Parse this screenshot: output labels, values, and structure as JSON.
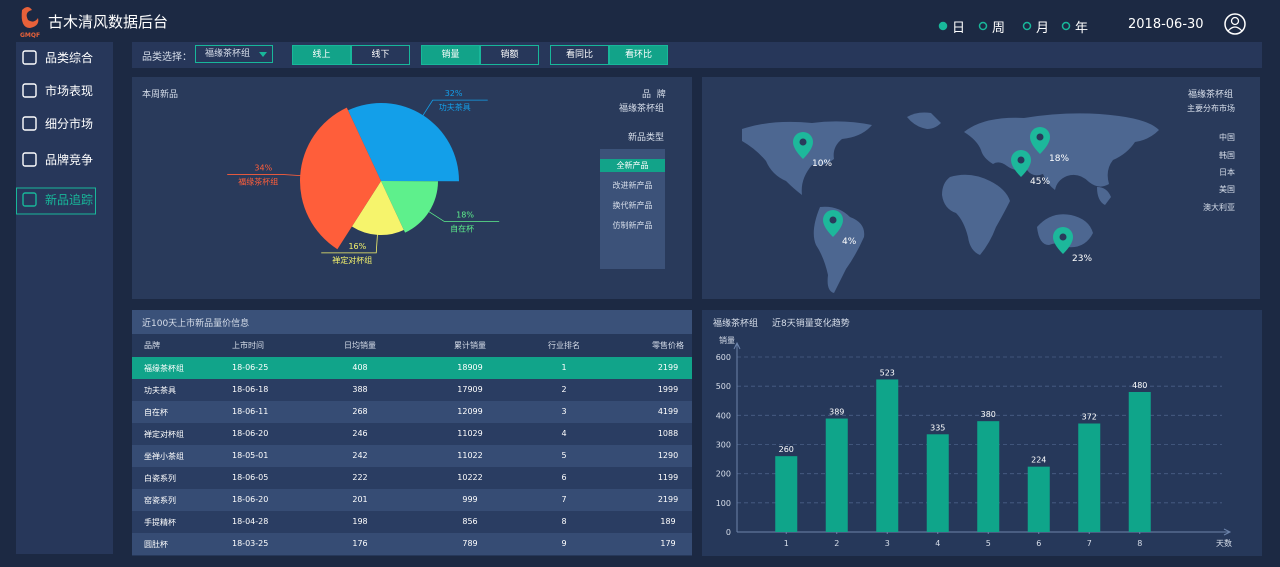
{
  "header": {
    "logo": "GMQF",
    "title": "古木清风数据后台",
    "periods": [
      "日",
      "周",
      "月",
      "年"
    ],
    "date": "2018-06-30"
  },
  "sidebar": {
    "items": [
      "品类综合",
      "市场表现",
      "细分市场",
      "品牌竞争",
      "新品追踪"
    ]
  },
  "filters": {
    "label": "品类选择：",
    "select": "福缘茶杯组",
    "toggles": [
      [
        "线上",
        "线下"
      ],
      [
        "销量",
        "销额"
      ],
      [
        "看同比",
        "看环比"
      ]
    ]
  },
  "pie_panel": {
    "brand_label": "品  牌",
    "brand": "福缘茶杯组",
    "type_label": "新品类型",
    "types": [
      "全新产品",
      "改进新产品",
      "换代新产品",
      "仿制新产品"
    ]
  },
  "map": {
    "brand": "福缘茶杯组",
    "subtitle": "主要分布市场",
    "markets": [
      "中国",
      "韩国",
      "日本",
      "美国",
      "澳大利亚"
    ],
    "values": [
      10,
      4,
      18,
      45,
      23
    ],
    "value_labels": [
      "10%",
      "4%",
      "18%",
      "45%",
      "23%"
    ]
  },
  "table": {
    "title": "近100天上市新品量价信息",
    "header": [
      "品牌",
      "上市时间",
      "日均销量",
      "累计销量",
      "行业排名",
      "零售价格"
    ],
    "rows": [
      [
        "福缘茶杯组",
        "18-06-25",
        408,
        18909,
        1,
        2199
      ],
      [
        "功夫茶具",
        "18-06-18",
        388,
        17909,
        2,
        1999
      ],
      [
        "自在杯",
        "18-06-11",
        268,
        12099,
        3,
        4199
      ],
      [
        "禅定对杯组",
        "18-06-20",
        246,
        11029,
        4,
        1088
      ],
      [
        "坐禅小茶组",
        "18-05-01",
        242,
        11022,
        5,
        1290
      ],
      [
        "白瓷系列",
        "18-06-05",
        222,
        10222,
        6,
        1199
      ],
      [
        "窑瓷系列",
        "18-06-20",
        201,
        999,
        7,
        2199
      ],
      [
        "手提精杯",
        "18-04-28",
        198,
        856,
        8,
        189
      ],
      [
        "圆肚杯",
        "18-03-25",
        176,
        789,
        9,
        179
      ]
    ]
  },
  "chart_data": [
    {
      "type": "pie",
      "title": "本周新品",
      "categories": [
        "功夫茶具",
        "自在杯",
        "禅定对杯组",
        "福缘茶杯组"
      ],
      "values": [
        32,
        18,
        16,
        34
      ],
      "value_labels": [
        "32%",
        "18%",
        "16%",
        "34%"
      ],
      "colors": [
        "#139fe9",
        "#5ef08c",
        "#f6f46c",
        "#ff5e3a"
      ]
    },
    {
      "type": "bar",
      "subtitle": "福缘茶杯组",
      "title": "近8天销量变化趋势",
      "y_label": "销量",
      "x_label": "天数",
      "categories": [
        1,
        2,
        3,
        4,
        5,
        6,
        7,
        8
      ],
      "values": [
        260,
        389,
        523,
        335,
        380,
        224,
        372,
        480
      ],
      "ylim": [
        0,
        600
      ],
      "yticks": [
        0,
        100,
        200,
        300,
        400,
        500,
        600
      ],
      "color": "#0fa58a",
      "grid": true
    }
  ]
}
